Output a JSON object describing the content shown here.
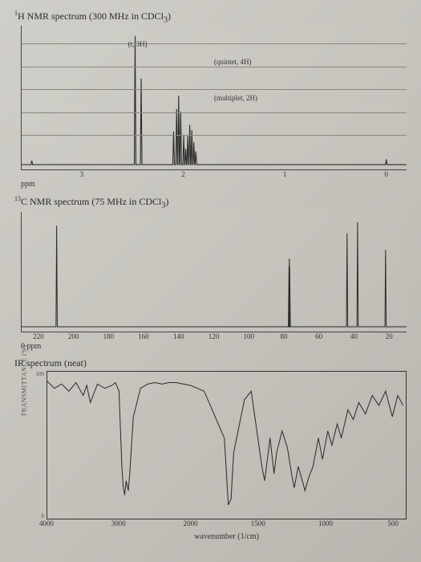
{
  "hnmr": {
    "title_pre": "",
    "title_sup": "1",
    "title_rest": "H NMR spectrum (300 MHz in CDCl",
    "title_sub": "3",
    "title_end": ")",
    "xlim": [
      3.6,
      -0.2
    ],
    "ticks": [
      3,
      2,
      1,
      0
    ],
    "axis_unit": "ppm",
    "gridlines_y": [
      0.12,
      0.28,
      0.44,
      0.6,
      0.76
    ],
    "annotations": [
      {
        "text": "(t, 3H)",
        "ppm": 2.55,
        "y": 0.1
      },
      {
        "text": "(quintet, 4H)",
        "ppm": 1.7,
        "y": 0.22
      },
      {
        "text": "(multiplet, 2H)",
        "ppm": 1.7,
        "y": 0.47
      }
    ],
    "peaks": [
      {
        "ppm": 3.5,
        "h": 0.03
      },
      {
        "ppm": 2.48,
        "h": 0.97
      },
      {
        "ppm": 2.42,
        "h": 0.65
      },
      {
        "ppm": 2.05,
        "h": 0.52,
        "cluster": [
          2.1,
          2.07,
          2.05,
          2.03,
          2.0
        ],
        "ch": [
          0.25,
          0.42,
          0.52,
          0.4,
          0.22
        ]
      },
      {
        "ppm": 1.95,
        "h": 0.3,
        "cluster": [
          1.98,
          1.96,
          1.94,
          1.92,
          1.9,
          1.88
        ],
        "ch": [
          0.12,
          0.22,
          0.3,
          0.26,
          0.17,
          0.1
        ]
      },
      {
        "ppm": 0.0,
        "h": 0.04
      }
    ],
    "baseline_color": "#2b2b2b",
    "stroke_width": 1.1
  },
  "cnmr": {
    "title_sup": "13",
    "title_rest": "C NMR spectrum (75 MHz in CDCl",
    "title_sub": "3",
    "title_end": ")",
    "xlim": [
      230,
      10
    ],
    "ticks": [
      220,
      200,
      180,
      160,
      140,
      120,
      100,
      80,
      60,
      40,
      20
    ],
    "axis_unit": "0 ppm",
    "axis_unit_left": "",
    "peaks_ppm": [
      210,
      77.2,
      77.0,
      76.8,
      44,
      38,
      22
    ],
    "peak_heights": [
      0.92,
      0.55,
      0.62,
      0.55,
      0.85,
      0.95,
      0.7
    ],
    "baseline_color": "#2b2b2b",
    "stroke_width": 1.0
  },
  "ir": {
    "title": "IR spectrum (neat)",
    "xlim": [
      4000,
      400
    ],
    "ticks": [
      4000,
      3000,
      2000,
      1500,
      1000,
      500
    ],
    "xlabel": "wavenumber (1/cm)",
    "ylabel": "TRANSMITTANCE (%)",
    "ylim": [
      0,
      100
    ],
    "yticks": [
      0,
      100
    ],
    "ytick_labels": [
      "0",
      "100"
    ],
    "trace": [
      [
        4000,
        95
      ],
      [
        3900,
        90
      ],
      [
        3800,
        93
      ],
      [
        3700,
        88
      ],
      [
        3600,
        94
      ],
      [
        3500,
        85
      ],
      [
        3450,
        92
      ],
      [
        3400,
        80
      ],
      [
        3300,
        93
      ],
      [
        3200,
        90
      ],
      [
        3100,
        92
      ],
      [
        3050,
        94
      ],
      [
        3000,
        88
      ],
      [
        2960,
        35
      ],
      [
        2940,
        20
      ],
      [
        2920,
        15
      ],
      [
        2900,
        25
      ],
      [
        2870,
        18
      ],
      [
        2850,
        30
      ],
      [
        2800,
        70
      ],
      [
        2700,
        90
      ],
      [
        2600,
        93
      ],
      [
        2500,
        94
      ],
      [
        2400,
        93
      ],
      [
        2300,
        94
      ],
      [
        2200,
        94
      ],
      [
        2100,
        93
      ],
      [
        2000,
        92
      ],
      [
        1950,
        90
      ],
      [
        1900,
        88
      ],
      [
        1750,
        55
      ],
      [
        1720,
        8
      ],
      [
        1700,
        12
      ],
      [
        1680,
        45
      ],
      [
        1600,
        82
      ],
      [
        1550,
        88
      ],
      [
        1470,
        35
      ],
      [
        1450,
        25
      ],
      [
        1430,
        40
      ],
      [
        1410,
        55
      ],
      [
        1380,
        30
      ],
      [
        1360,
        45
      ],
      [
        1320,
        60
      ],
      [
        1280,
        48
      ],
      [
        1250,
        30
      ],
      [
        1230,
        20
      ],
      [
        1200,
        35
      ],
      [
        1170,
        25
      ],
      [
        1150,
        18
      ],
      [
        1120,
        28
      ],
      [
        1090,
        35
      ],
      [
        1050,
        55
      ],
      [
        1020,
        40
      ],
      [
        980,
        60
      ],
      [
        950,
        50
      ],
      [
        910,
        65
      ],
      [
        880,
        55
      ],
      [
        830,
        75
      ],
      [
        790,
        68
      ],
      [
        750,
        80
      ],
      [
        700,
        72
      ],
      [
        650,
        85
      ],
      [
        600,
        78
      ],
      [
        550,
        88
      ],
      [
        500,
        70
      ],
      [
        460,
        85
      ],
      [
        420,
        78
      ]
    ],
    "stroke_color": "#2b2b2b",
    "stroke_width": 1.0
  },
  "colors": {
    "text": "#2a2a2a",
    "axis": "#444444"
  }
}
